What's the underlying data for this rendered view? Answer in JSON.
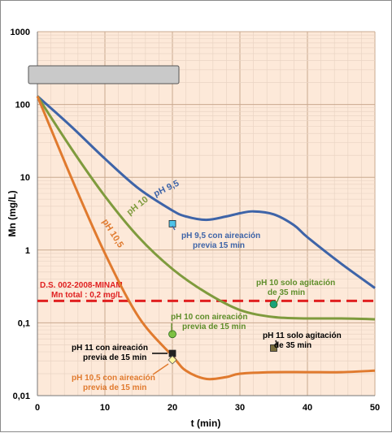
{
  "chart_data": {
    "type": "line",
    "xlabel": "t (min)",
    "ylabel": "Mn (mg/L)",
    "x_scale": "linear",
    "y_scale": "log",
    "xlim": [
      0,
      50
    ],
    "ylim": [
      0.01,
      1000
    ],
    "x_ticks": [
      "0",
      "10",
      "20",
      "30",
      "40",
      "50"
    ],
    "y_ticks": [
      "0,01",
      "0,1",
      "1",
      "10",
      "100",
      "1000"
    ],
    "grid": true,
    "colors": {
      "plot_bg": "#fde9d9",
      "grid": "#e0c9b8",
      "ph95": "#3e64a8",
      "ph10": "#7f9b3d",
      "ph105": "#e07a2e",
      "limit": "#e02020"
    },
    "series": [
      {
        "name": "pH 9,5",
        "color": "#3e64a8",
        "x": [
          0,
          5,
          10,
          15,
          20,
          22,
          25,
          28,
          30,
          32,
          35,
          38,
          40,
          45,
          50
        ],
        "y": [
          130,
          50,
          18,
          7,
          3.5,
          2.9,
          2.6,
          2.9,
          3.2,
          3.4,
          3.1,
          2.2,
          1.5,
          0.65,
          0.3
        ]
      },
      {
        "name": "pH 10",
        "color": "#7f9b3d",
        "x": [
          0,
          5,
          10,
          15,
          20,
          25,
          30,
          35,
          40,
          45,
          50
        ],
        "y": [
          130,
          25,
          5.5,
          1.5,
          0.55,
          0.26,
          0.15,
          0.12,
          0.115,
          0.115,
          0.112
        ]
      },
      {
        "name": "pH 10,5",
        "color": "#e07a2e",
        "x": [
          0,
          5,
          10,
          15,
          20,
          22,
          25,
          28,
          30,
          35,
          40,
          45,
          50
        ],
        "y": [
          130,
          10,
          0.9,
          0.12,
          0.035,
          0.022,
          0.017,
          0.018,
          0.02,
          0.021,
          0.021,
          0.021,
          0.022
        ]
      }
    ],
    "reference_line": {
      "y": 0.2,
      "color": "#e02020",
      "label_lines": [
        "D.S. 002-2008-MINAM",
        "Mn total : 0,2 mg/L"
      ]
    },
    "points": [
      {
        "x": 20,
        "y": 2.3,
        "marker": "square",
        "color": "#4fc3e8",
        "label_lines": [
          "pH 9,5 con aireación",
          "previa 15 min"
        ],
        "label_color": "#3e64a8"
      },
      {
        "x": 20,
        "y": 0.07,
        "marker": "circle",
        "color": "#7dc142",
        "label_lines": [
          "pH 10  con aireación",
          "previa de 15 min"
        ],
        "label_color": "#5e8e2a"
      },
      {
        "x": 20,
        "y": 0.038,
        "marker": "square",
        "color": "#222222",
        "label_lines": [
          "pH 11 con aireación",
          "previa  de 15 min"
        ],
        "label_color": "#000000"
      },
      {
        "x": 20,
        "y": 0.031,
        "marker": "diamond",
        "color": "#fff7a0",
        "label_lines": [
          "pH 10,5 con aireación",
          "previa de 15 min"
        ],
        "label_color": "#e07a2e"
      },
      {
        "x": 35,
        "y": 0.18,
        "marker": "circle",
        "color": "#1aa37a",
        "label_lines": [
          "pH 10 solo agitación",
          "de 35 min"
        ],
        "label_color": "#5e8e2a"
      },
      {
        "x": 35,
        "y": 0.045,
        "marker": "square",
        "color": "#7a6e3c",
        "label_lines": [
          "pH 11 solo agitación",
          "de  35 min"
        ],
        "label_color": "#000000"
      }
    ]
  }
}
